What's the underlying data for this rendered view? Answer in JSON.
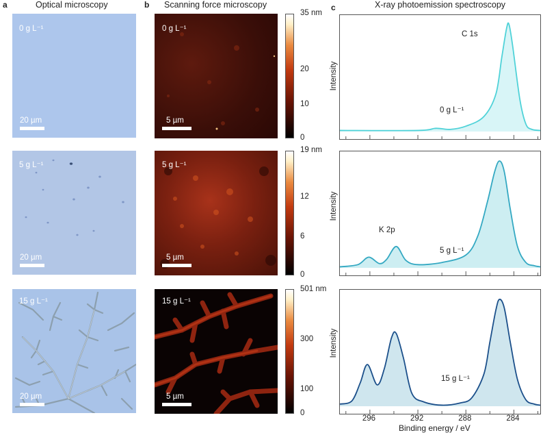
{
  "panels": {
    "a": {
      "letter": "a",
      "title": "Optical microscopy"
    },
    "b": {
      "letter": "b",
      "title": "Scanning force microscopy"
    },
    "c": {
      "letter": "c",
      "title": "X-ray photoemission spectroscopy"
    }
  },
  "optical": [
    {
      "conc": "0 g L⁻¹",
      "scale": "20 µm"
    },
    {
      "conc": "5 g L⁻¹",
      "scale": "20 µm"
    },
    {
      "conc": "15 g L⁻¹",
      "scale": "20 µm"
    }
  ],
  "sfm": [
    {
      "conc": "0 g L⁻¹",
      "scale": "5 µm",
      "colorbar_ticks": [
        "35 nm",
        "20",
        "10",
        "0"
      ]
    },
    {
      "conc": "5 g L⁻¹",
      "scale": "5 µm",
      "colorbar_ticks": [
        "19 nm",
        "12",
        "6",
        "0"
      ]
    },
    {
      "conc": "15 g L⁻¹",
      "scale": "5 µm",
      "colorbar_ticks": [
        "501 nm",
        "300",
        "100",
        "0"
      ]
    }
  ],
  "chart_data": [
    {
      "type": "line",
      "title": "X-ray photoemission spectroscopy",
      "xlabel": "Binding energy / eV",
      "ylabel": "Intensity",
      "xlim": [
        298.5,
        281.8
      ],
      "xticks": [
        296,
        292,
        288,
        284
      ],
      "series": [
        {
          "name": "0 g L⁻¹",
          "color": "#4fd2d8",
          "fill": "#d8f5f7",
          "x": [
            298.5,
            292,
            290.5,
            289.3,
            288,
            286.5,
            285.5,
            285,
            284.6,
            284.4,
            284.1,
            283.5,
            283,
            282.5,
            281.8
          ],
          "y": [
            0.01,
            0.01,
            0.03,
            0.02,
            0.05,
            0.14,
            0.35,
            0.7,
            0.97,
            1.0,
            0.8,
            0.3,
            0.07,
            0.02,
            0.01
          ]
        }
      ],
      "annotations": [
        "C 1s",
        "0 g L⁻¹"
      ]
    },
    {
      "type": "line",
      "xlabel": "Binding energy / eV",
      "ylabel": "Intensity",
      "xlim": [
        298.5,
        281.8
      ],
      "xticks": [
        296,
        292,
        288,
        284
      ],
      "series": [
        {
          "name": "5 g L⁻¹",
          "color": "#33a8c2",
          "fill": "#cdeef2",
          "x": [
            298.5,
            297,
            296.1,
            295.2,
            294.6,
            293.8,
            293,
            292,
            290,
            288,
            287,
            286.2,
            285.6,
            285.2,
            284.8,
            284.3,
            283.7,
            283,
            282.3,
            281.8
          ],
          "y": [
            0.01,
            0.03,
            0.1,
            0.04,
            0.08,
            0.2,
            0.07,
            0.03,
            0.05,
            0.12,
            0.3,
            0.62,
            0.9,
            1.0,
            0.9,
            0.55,
            0.2,
            0.05,
            0.02,
            0.01
          ]
        }
      ],
      "annotations": [
        "K 2p",
        "5 g L⁻¹"
      ]
    },
    {
      "type": "line",
      "xlabel": "Binding energy / eV",
      "ylabel": "Intensity",
      "xlim": [
        298.5,
        281.8
      ],
      "xticks": [
        296,
        292,
        288,
        284
      ],
      "series": [
        {
          "name": "15 g L⁻¹",
          "color": "#1b4f8a",
          "fill": "#cfe6ee",
          "x": [
            298.5,
            297.5,
            296.8,
            296.2,
            295.4,
            294.8,
            294.2,
            293.8,
            293.2,
            292.5,
            291.5,
            290,
            288.5,
            287.5,
            286.5,
            286,
            285.5,
            285.2,
            284.8,
            284.3,
            283.7,
            283,
            282.3,
            281.8
          ],
          "y": [
            0.02,
            0.05,
            0.22,
            0.39,
            0.2,
            0.35,
            0.64,
            0.68,
            0.45,
            0.12,
            0.04,
            0.01,
            0.03,
            0.08,
            0.3,
            0.6,
            0.9,
            1.0,
            0.92,
            0.6,
            0.25,
            0.06,
            0.02,
            0.01
          ]
        }
      ],
      "annotations": [
        "15 g L⁻¹"
      ]
    }
  ]
}
